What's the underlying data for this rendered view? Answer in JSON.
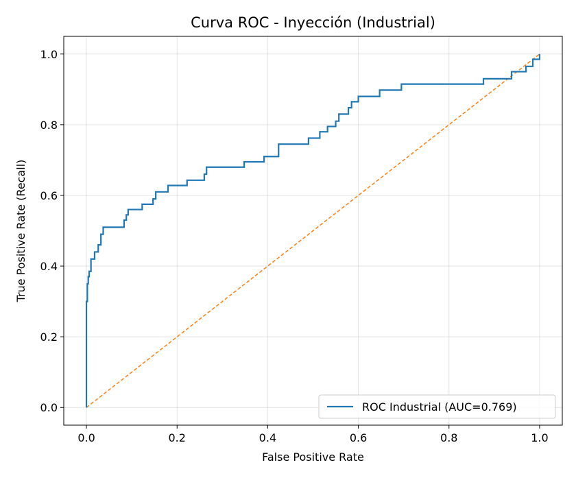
{
  "chart_data": {
    "type": "line",
    "title": "Curva ROC - Inyección (Industrial)",
    "xlabel": "False Positive Rate",
    "ylabel": "True Positive Rate (Recall)",
    "xlim": [
      -0.05,
      1.05
    ],
    "ylim": [
      -0.05,
      1.05
    ],
    "xticks": [
      0.0,
      0.2,
      0.4,
      0.6,
      0.8,
      1.0
    ],
    "yticks": [
      0.0,
      0.2,
      0.4,
      0.6,
      0.8,
      1.0
    ],
    "xtick_labels": [
      "0.0",
      "0.2",
      "0.4",
      "0.6",
      "0.8",
      "1.0"
    ],
    "ytick_labels": [
      "0.0",
      "0.2",
      "0.4",
      "0.6",
      "0.8",
      "1.0"
    ],
    "grid": true,
    "legend_position": "lower-right",
    "series": [
      {
        "name": "ROC Industrial (AUC=0.769)",
        "color": "#1f77b4",
        "style": "solid",
        "x": [
          0.0,
          0.0,
          0.002,
          0.002,
          0.004,
          0.004,
          0.006,
          0.006,
          0.01,
          0.01,
          0.018,
          0.018,
          0.026,
          0.026,
          0.032,
          0.032,
          0.037,
          0.037,
          0.083,
          0.083,
          0.088,
          0.088,
          0.092,
          0.092,
          0.123,
          0.123,
          0.147,
          0.147,
          0.153,
          0.153,
          0.18,
          0.18,
          0.2,
          0.2,
          0.222,
          0.222,
          0.26,
          0.26,
          0.265,
          0.265,
          0.348,
          0.348,
          0.392,
          0.392,
          0.424,
          0.424,
          0.49,
          0.49,
          0.515,
          0.515,
          0.532,
          0.532,
          0.55,
          0.55,
          0.557,
          0.557,
          0.578,
          0.578,
          0.585,
          0.585,
          0.6,
          0.6,
          0.647,
          0.647,
          0.695,
          0.695,
          0.876,
          0.876,
          0.938,
          0.938,
          0.97,
          0.97,
          0.985,
          0.985,
          1.0,
          1.0
        ],
        "y": [
          0.0,
          0.3,
          0.3,
          0.35,
          0.35,
          0.37,
          0.37,
          0.385,
          0.385,
          0.42,
          0.42,
          0.44,
          0.44,
          0.46,
          0.46,
          0.49,
          0.49,
          0.51,
          0.51,
          0.53,
          0.53,
          0.545,
          0.545,
          0.56,
          0.56,
          0.575,
          0.575,
          0.59,
          0.59,
          0.61,
          0.61,
          0.628,
          0.628,
          0.628,
          0.628,
          0.643,
          0.643,
          0.66,
          0.66,
          0.68,
          0.68,
          0.695,
          0.695,
          0.71,
          0.71,
          0.745,
          0.745,
          0.762,
          0.762,
          0.78,
          0.78,
          0.795,
          0.795,
          0.81,
          0.81,
          0.83,
          0.83,
          0.848,
          0.848,
          0.865,
          0.865,
          0.88,
          0.88,
          0.898,
          0.898,
          0.915,
          0.915,
          0.93,
          0.93,
          0.95,
          0.95,
          0.965,
          0.965,
          0.985,
          0.985,
          1.0
        ]
      },
      {
        "color": "#ff7f0e",
        "style": "dashed",
        "x": [
          0.0,
          1.0
        ],
        "y": [
          0.0,
          1.0
        ]
      }
    ]
  }
}
